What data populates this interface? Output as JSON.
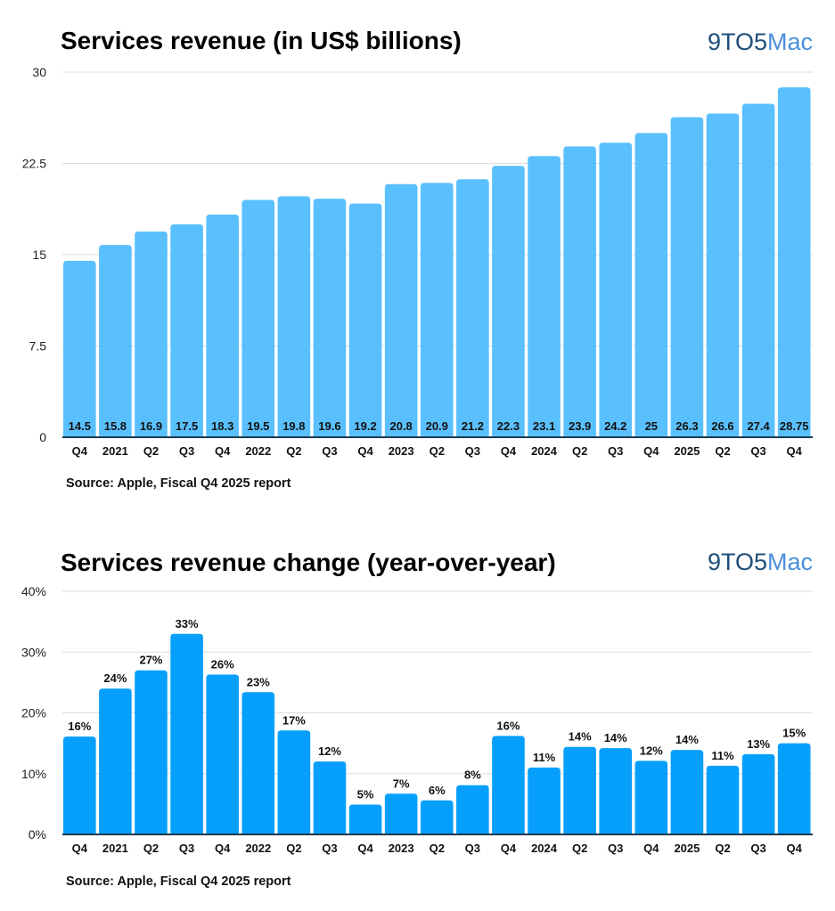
{
  "logo_text": {
    "part1": "9TO5",
    "part2": "Mac"
  },
  "chart_data": [
    {
      "type": "bar",
      "title": "Services revenue (in US$ billions)",
      "categories": [
        "Q4",
        "2021",
        "Q2",
        "Q3",
        "Q4",
        "2022",
        "Q2",
        "Q3",
        "Q4",
        "2023",
        "Q2",
        "Q3",
        "Q4",
        "2024",
        "Q2",
        "Q3",
        "Q4",
        "2025",
        "Q2",
        "Q3",
        "Q4"
      ],
      "values": [
        14.5,
        15.8,
        16.9,
        17.5,
        18.3,
        19.5,
        19.8,
        19.6,
        19.2,
        20.8,
        20.9,
        21.2,
        22.3,
        23.1,
        23.9,
        24.2,
        25,
        26.3,
        26.6,
        27.4,
        28.75
      ],
      "data_labels": [
        "14.5",
        "15.8",
        "16.9",
        "17.5",
        "18.3",
        "19.5",
        "19.8",
        "19.6",
        "19.2",
        "20.8",
        "20.9",
        "21.2",
        "22.3",
        "23.1",
        "23.9",
        "24.2",
        "25",
        "26.3",
        "26.6",
        "27.4",
        "28.75"
      ],
      "data_label_position": "inside-bottom",
      "yticks": [
        "0",
        "7.5",
        "15",
        "22.5",
        "30"
      ],
      "ylim": [
        0,
        30
      ],
      "grid": true,
      "bar_color": "#5AC0FD",
      "source": "Source: Apple, Fiscal Q4 2025 report"
    },
    {
      "type": "bar",
      "title": "Services revenue change (year-over-year)",
      "categories": [
        "Q4",
        "2021",
        "Q2",
        "Q3",
        "Q4",
        "2022",
        "Q2",
        "Q3",
        "Q4",
        "2023",
        "Q2",
        "Q3",
        "Q4",
        "2024",
        "Q2",
        "Q3",
        "Q4",
        "2025",
        "Q2",
        "Q3",
        "Q4"
      ],
      "values": [
        16.1,
        24,
        27,
        33,
        26.3,
        23.4,
        17.1,
        12,
        4.9,
        6.7,
        5.6,
        8.1,
        16.2,
        11,
        14.4,
        14.2,
        12.1,
        13.9,
        11.3,
        13.2,
        15
      ],
      "data_labels": [
        "16%",
        "24%",
        "27%",
        "33%",
        "26%",
        "23%",
        "17%",
        "12%",
        "5%",
        "7%",
        "6%",
        "8%",
        "16%",
        "11%",
        "14%",
        "14%",
        "12%",
        "14%",
        "11%",
        "13%",
        "15%"
      ],
      "data_label_position": "above",
      "yticks": [
        "0%",
        "10%",
        "20%",
        "30%",
        "40%"
      ],
      "ylim": [
        0,
        40
      ],
      "grid": true,
      "bar_color": "#079FFC",
      "source": "Source: Apple, Fiscal Q4 2025 report"
    }
  ]
}
